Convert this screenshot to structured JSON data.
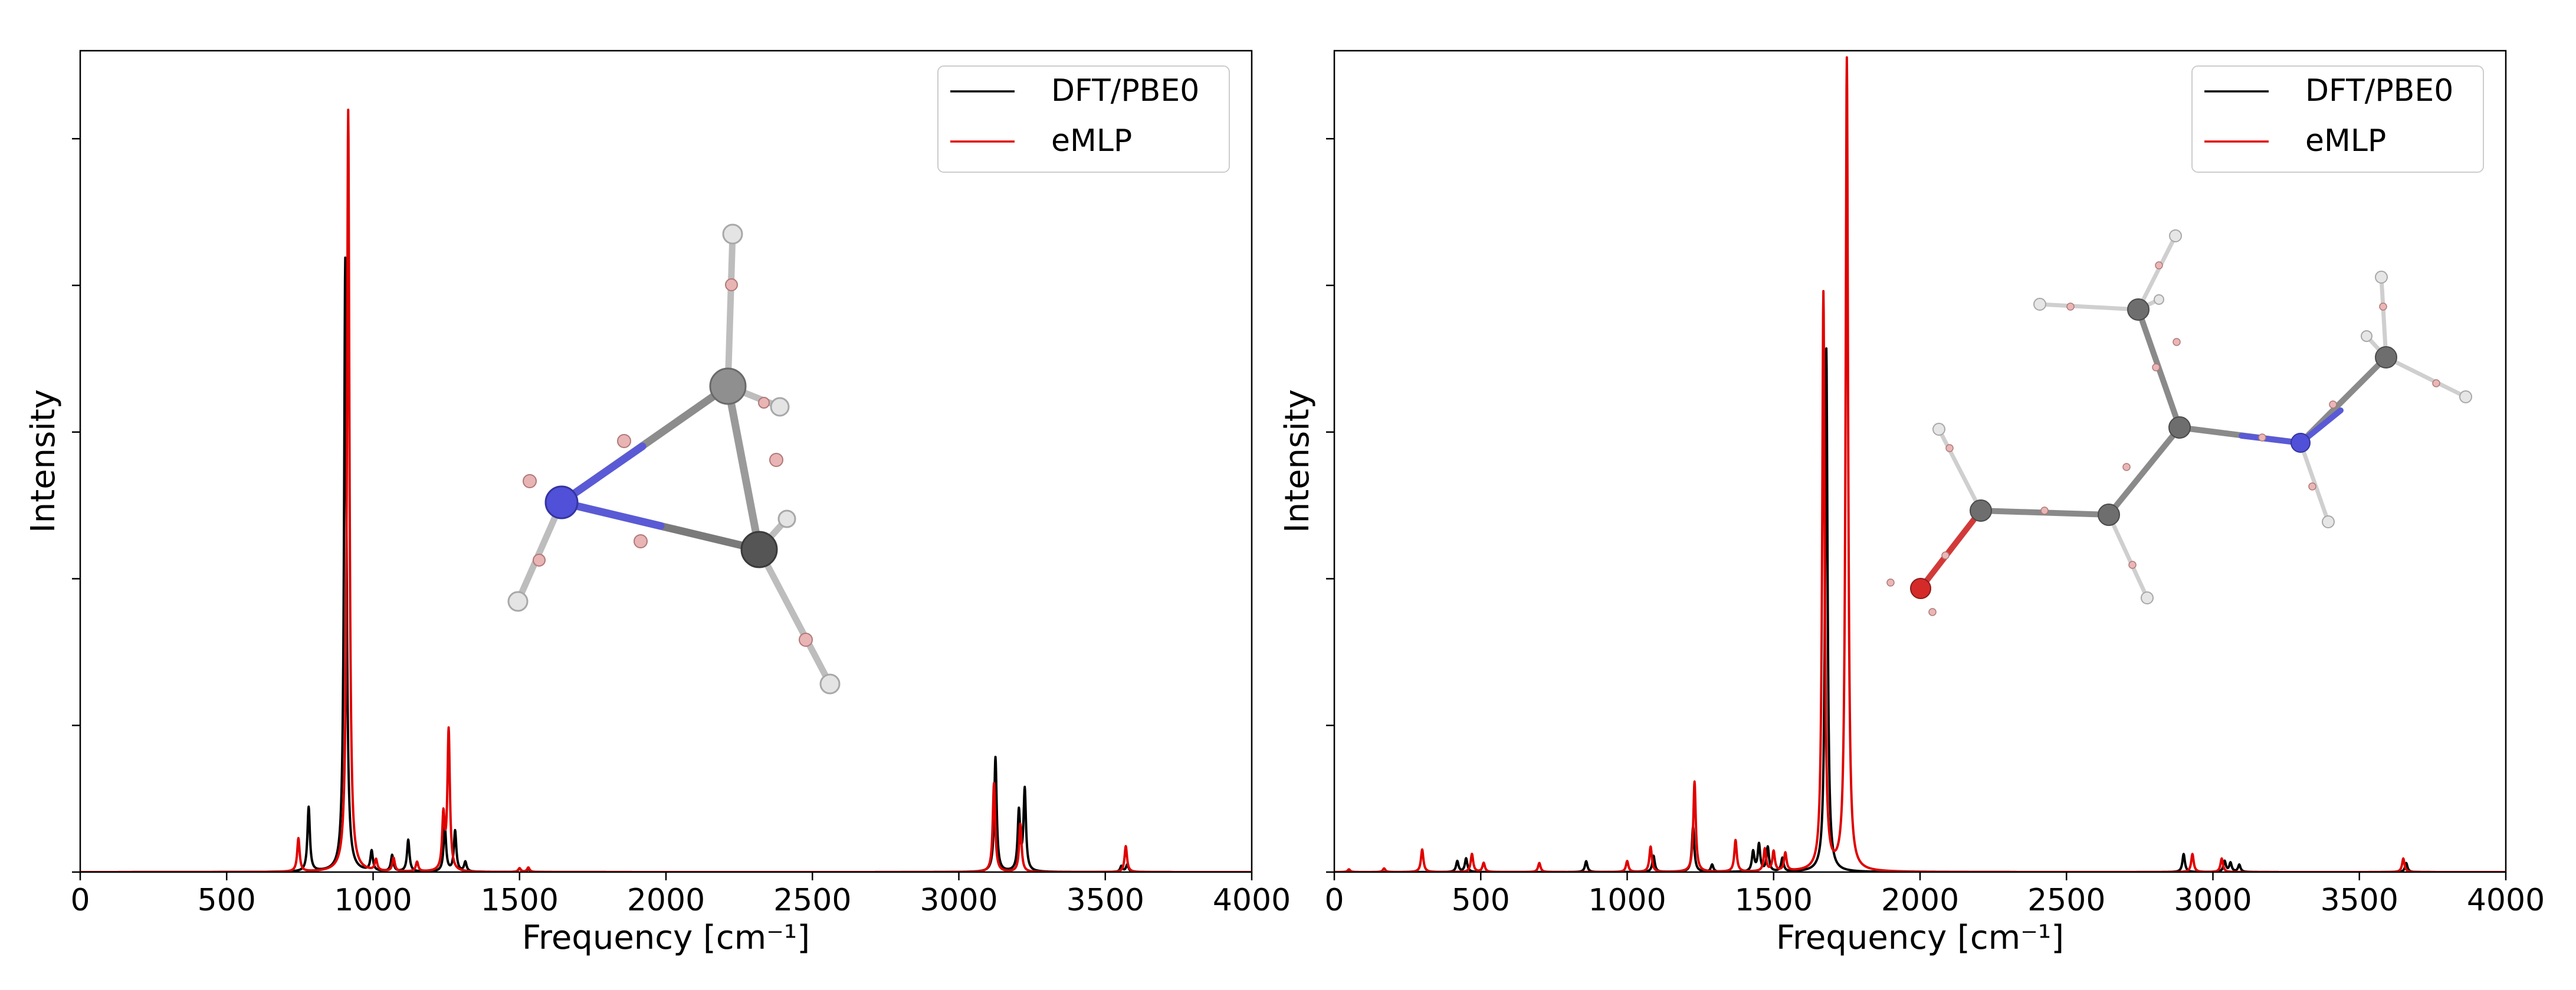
{
  "chart_data": [
    {
      "type": "line",
      "panel": "left",
      "xlabel": "Frequency [cm⁻¹]",
      "ylabel": "Intensity",
      "xlim": [
        0,
        4000
      ],
      "ylim": [
        0,
        1.11
      ],
      "x_ticks": [
        0,
        500,
        1000,
        1500,
        2000,
        2500,
        3000,
        3500,
        4000
      ],
      "x_tick_labels": [
        "0",
        "500",
        "1000",
        "1500",
        "2000",
        "2500",
        "3000",
        "3500",
        "4000"
      ],
      "y_tick_labels_shown": false,
      "legend": {
        "position": "top-right",
        "entries": [
          "DFT/PBE0",
          "eMLP"
        ]
      },
      "inset": "ball-and-stick molecule (3-membered ring with blue N atom, grey C atoms, white H atoms)",
      "line_width_cm1": 5,
      "series": [
        {
          "name": "DFT/PBE0",
          "color": "#000000",
          "peaks": [
            [
              780,
              0.087
            ],
            [
              905,
              0.83
            ],
            [
              995,
              0.027
            ],
            [
              1065,
              0.022
            ],
            [
              1120,
              0.043
            ],
            [
              1245,
              0.062
            ],
            [
              1280,
              0.055
            ],
            [
              1315,
              0.013
            ],
            [
              1500,
              0.005
            ],
            [
              1530,
              0.004
            ],
            [
              3125,
              0.155
            ],
            [
              3205,
              0.08
            ],
            [
              3225,
              0.11
            ],
            [
              3555,
              0.008
            ],
            [
              3575,
              0.01
            ]
          ]
        },
        {
          "name": "eMLP",
          "color": "#e00000",
          "peaks": [
            [
              745,
              0.045
            ],
            [
              915,
              1.03
            ],
            [
              1010,
              0.015
            ],
            [
              1070,
              0.018
            ],
            [
              1150,
              0.013
            ],
            [
              1240,
              0.072
            ],
            [
              1258,
              0.19
            ],
            [
              1500,
              0.005
            ],
            [
              1530,
              0.006
            ],
            [
              3120,
              0.12
            ],
            [
              3210,
              0.065
            ],
            [
              3570,
              0.035
            ]
          ]
        }
      ]
    },
    {
      "type": "line",
      "panel": "right",
      "xlabel": "Frequency [cm⁻¹]",
      "ylabel": "Intensity",
      "xlim": [
        0,
        4000
      ],
      "ylim": [
        0,
        0.91
      ],
      "x_ticks": [
        0,
        500,
        1000,
        1500,
        2000,
        2500,
        3000,
        3500,
        4000
      ],
      "x_tick_labels": [
        "0",
        "500",
        "1000",
        "1500",
        "2000",
        "2500",
        "3000",
        "3500",
        "4000"
      ],
      "y_tick_labels_shown": false,
      "legend": {
        "position": "top-right",
        "entries": [
          "DFT/PBE0",
          "eMLP"
        ]
      },
      "inset": "ball-and-stick molecule (chain with grey C atoms, blue N atom, red O atom, white H atoms)",
      "line_width_cm1": 5,
      "series": [
        {
          "name": "DFT/PBE0",
          "color": "#000000",
          "peaks": [
            [
              420,
              0.012
            ],
            [
              450,
              0.015
            ],
            [
              860,
              0.012
            ],
            [
              1090,
              0.018
            ],
            [
              1225,
              0.05
            ],
            [
              1290,
              0.008
            ],
            [
              1430,
              0.022
            ],
            [
              1450,
              0.03
            ],
            [
              1480,
              0.027
            ],
            [
              1530,
              0.015
            ],
            [
              1680,
              0.58
            ],
            [
              2900,
              0.02
            ],
            [
              3040,
              0.012
            ],
            [
              3060,
              0.01
            ],
            [
              3090,
              0.008
            ],
            [
              3660,
              0.01
            ]
          ]
        },
        {
          "name": "eMLP",
          "color": "#e00000",
          "peaks": [
            [
              50,
              0.003
            ],
            [
              170,
              0.004
            ],
            [
              300,
              0.025
            ],
            [
              470,
              0.02
            ],
            [
              510,
              0.01
            ],
            [
              700,
              0.01
            ],
            [
              1000,
              0.012
            ],
            [
              1080,
              0.028
            ],
            [
              1230,
              0.1
            ],
            [
              1370,
              0.035
            ],
            [
              1470,
              0.025
            ],
            [
              1500,
              0.022
            ],
            [
              1540,
              0.02
            ],
            [
              1670,
              0.64
            ],
            [
              1750,
              0.9
            ],
            [
              2930,
              0.02
            ],
            [
              3030,
              0.015
            ],
            [
              3650,
              0.015
            ]
          ]
        }
      ]
    }
  ]
}
